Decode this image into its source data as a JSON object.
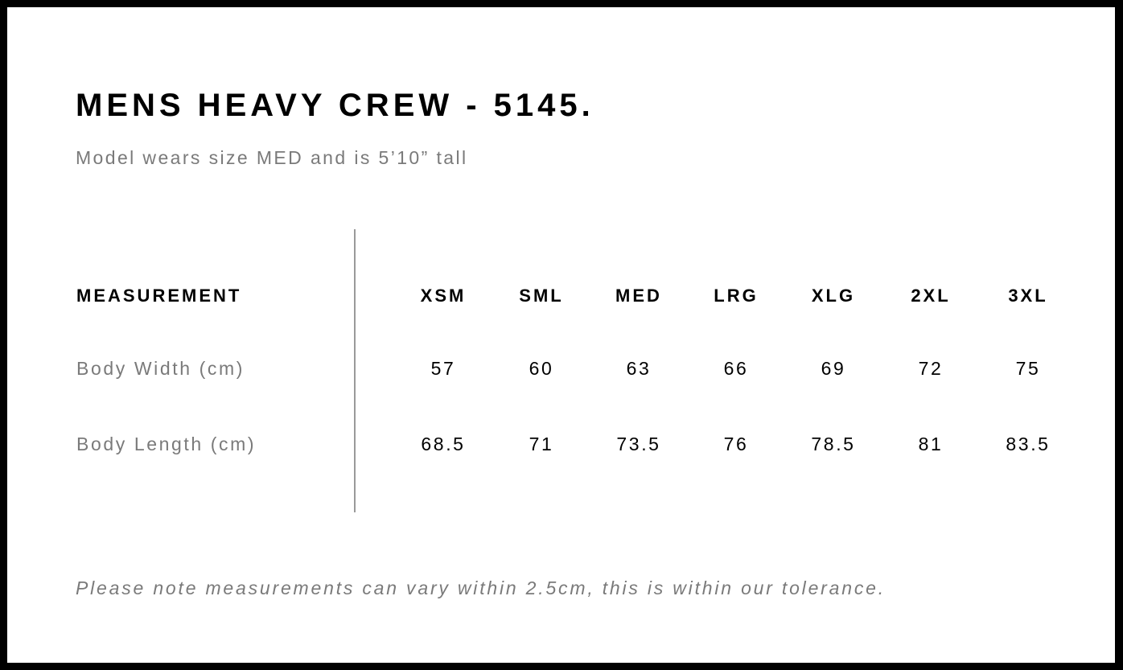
{
  "title": "MENS HEAVY CREW - 5145.",
  "subtitle": "Model wears size MED and is 5’10” tall",
  "table": {
    "header_label": "MEASUREMENT",
    "sizes": [
      "XSM",
      "SML",
      "MED",
      "LRG",
      "XLG",
      "2XL",
      "3XL"
    ],
    "rows": [
      {
        "label": "Body Width (cm)",
        "values": [
          "57",
          "60",
          "63",
          "66",
          "69",
          "72",
          "75"
        ]
      },
      {
        "label": "Body Length (cm)",
        "values": [
          "68.5",
          "71",
          "73.5",
          "76",
          "78.5",
          "81",
          "83.5"
        ]
      }
    ]
  },
  "note": "Please note measurements can vary within 2.5cm, this is within our tolerance."
}
